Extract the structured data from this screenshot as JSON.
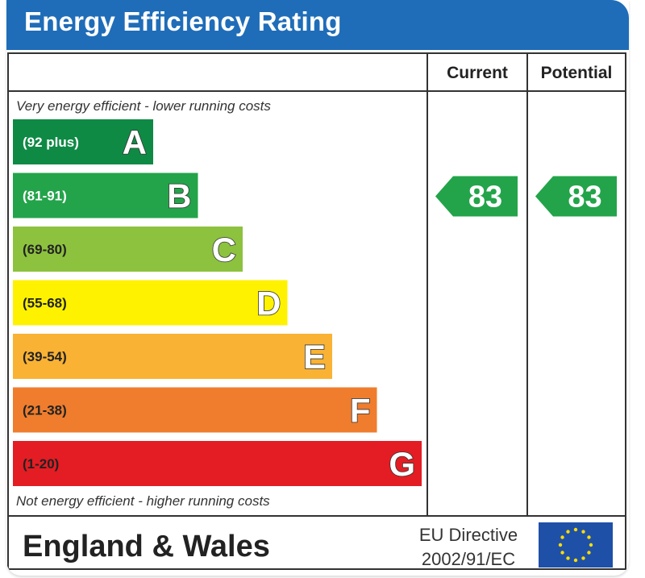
{
  "header": {
    "title": "Energy Efficiency Rating"
  },
  "columns": {
    "current": "Current",
    "potential": "Potential"
  },
  "chart_data": {
    "type": "bar",
    "title": "Energy Efficiency Rating",
    "top_note": "Very energy efficient - lower running costs",
    "bottom_note": "Not energy efficient - higher running costs",
    "bands": [
      {
        "letter": "A",
        "range": "(92 plus)",
        "color": "#0f8a45",
        "text_color": "#ffffff"
      },
      {
        "letter": "B",
        "range": "(81-91)",
        "color": "#23a44a",
        "text_color": "#ffffff"
      },
      {
        "letter": "C",
        "range": "(69-80)",
        "color": "#8dc23f",
        "text_color": "#222222"
      },
      {
        "letter": "D",
        "range": "(55-68)",
        "color": "#fff200",
        "text_color": "#222222"
      },
      {
        "letter": "E",
        "range": "(39-54)",
        "color": "#f9b233",
        "text_color": "#222222"
      },
      {
        "letter": "F",
        "range": "(21-38)",
        "color": "#ef7d2d",
        "text_color": "#222222"
      },
      {
        "letter": "G",
        "range": "(1-20)",
        "color": "#e31d23",
        "text_color": "#222222"
      }
    ],
    "current": {
      "value": 83,
      "band": "B",
      "color": "#23a44a"
    },
    "potential": {
      "value": 83,
      "band": "B",
      "color": "#23a44a"
    }
  },
  "footer": {
    "region": "England & Wales",
    "directive_line1": "EU Directive",
    "directive_line2": "2002/91/EC",
    "flag_color": "#1f50a8",
    "star_color": "#ffdd00"
  }
}
